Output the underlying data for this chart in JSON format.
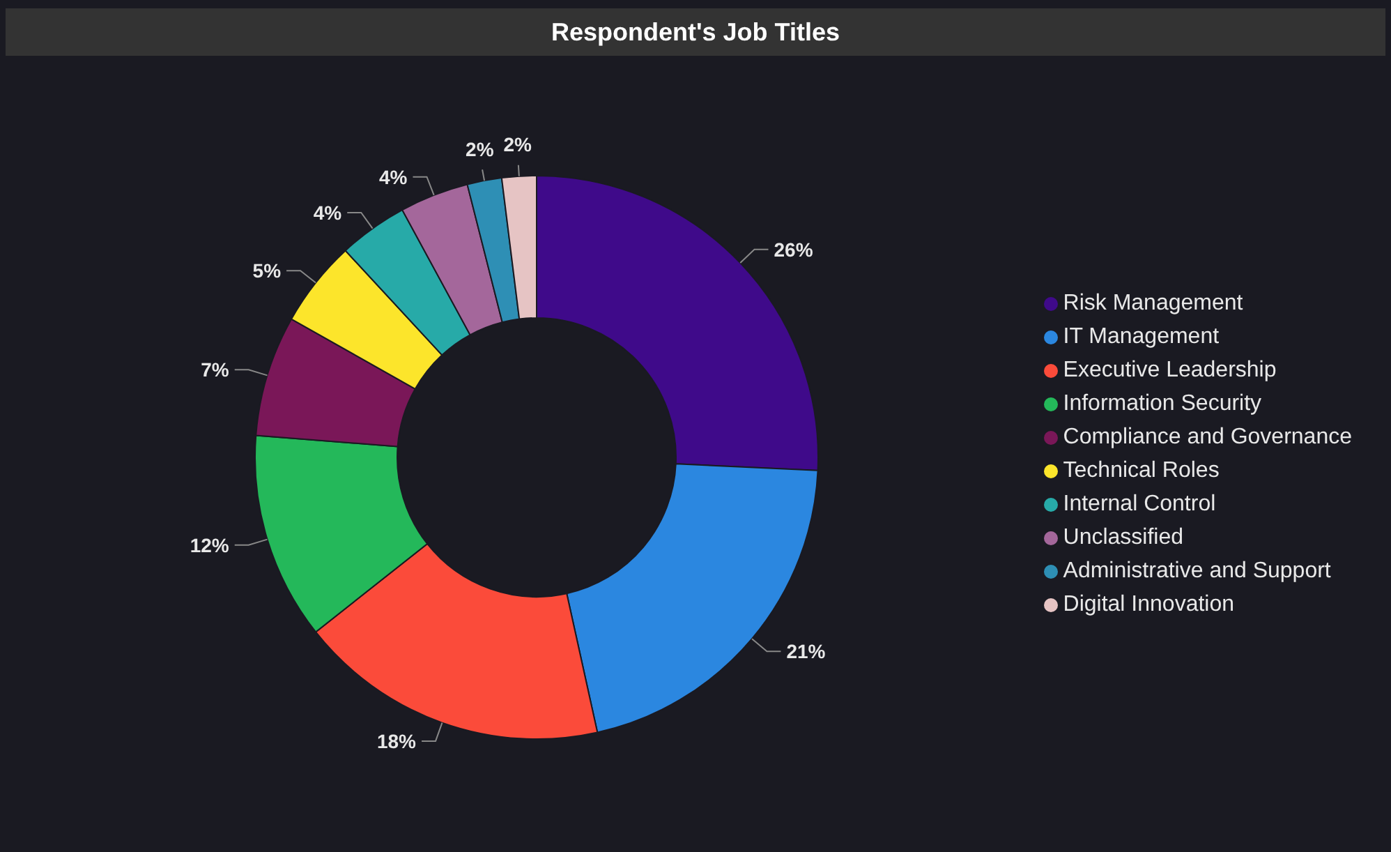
{
  "chart_data": {
    "type": "donut",
    "title": "Respondent's Job Titles",
    "categories": [
      "Risk Management",
      "IT Management",
      "Executive Leadership",
      "Information Security",
      "Compliance and Governance",
      "Technical Roles",
      "Internal Control",
      "Unclassified",
      "Administrative and Support",
      "Digital Innovation"
    ],
    "values": [
      26,
      21,
      18,
      12,
      7,
      5,
      4,
      4,
      2,
      2
    ],
    "value_labels": [
      "26%",
      "21%",
      "18%",
      "12%",
      "7%",
      "5%",
      "4%",
      "4%",
      "2%",
      "2%"
    ],
    "colors": [
      "#3f0a8a",
      "#2b87e0",
      "#fb4b3a",
      "#24b85a",
      "#7a1758",
      "#fce52b",
      "#27aaa8",
      "#a4679b",
      "#2e8fb5",
      "#e6c4c4"
    ],
    "legend": "right"
  }
}
